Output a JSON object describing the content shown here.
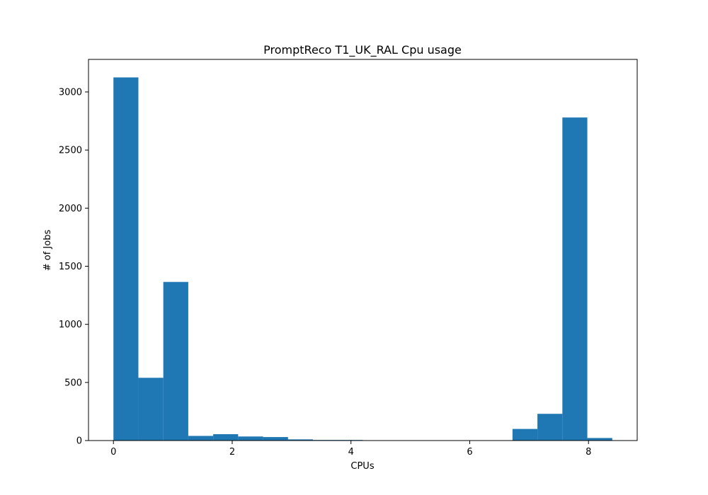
{
  "chart_data": {
    "type": "bar",
    "title": "PromptReco T1_UK_RAL Cpu usage",
    "xlabel": "CPUs",
    "ylabel": "# of Jobs",
    "bar_color": "#1f77b4",
    "grid": false,
    "legend": "none",
    "xlim": [
      -0.42,
      8.82
    ],
    "ylim": [
      0,
      3280
    ],
    "x_ticks": [
      0,
      2,
      4,
      6,
      8
    ],
    "y_ticks": [
      0,
      500,
      1000,
      1500,
      2000,
      2500,
      3000
    ],
    "bin_edges": [
      0,
      0.42,
      0.84,
      1.26,
      1.68,
      2.1,
      2.52,
      2.94,
      3.36,
      3.78,
      4.2,
      4.62,
      5.04,
      5.46,
      5.88,
      6.3,
      6.72,
      7.14,
      7.56,
      7.98,
      8.4
    ],
    "values": [
      3125,
      540,
      1365,
      40,
      55,
      35,
      30,
      10,
      5,
      5,
      3,
      3,
      3,
      3,
      3,
      3,
      100,
      230,
      2780,
      22
    ]
  }
}
